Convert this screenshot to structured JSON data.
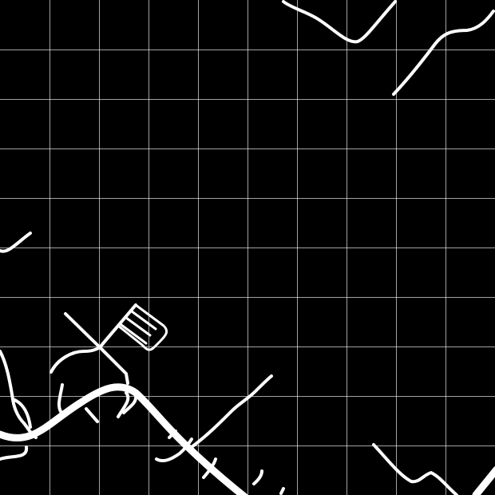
{
  "map": {
    "background_color": "#000000",
    "road_color": "#ffffff",
    "grid_color": "#ffffff",
    "grid_cell_count": 10
  }
}
